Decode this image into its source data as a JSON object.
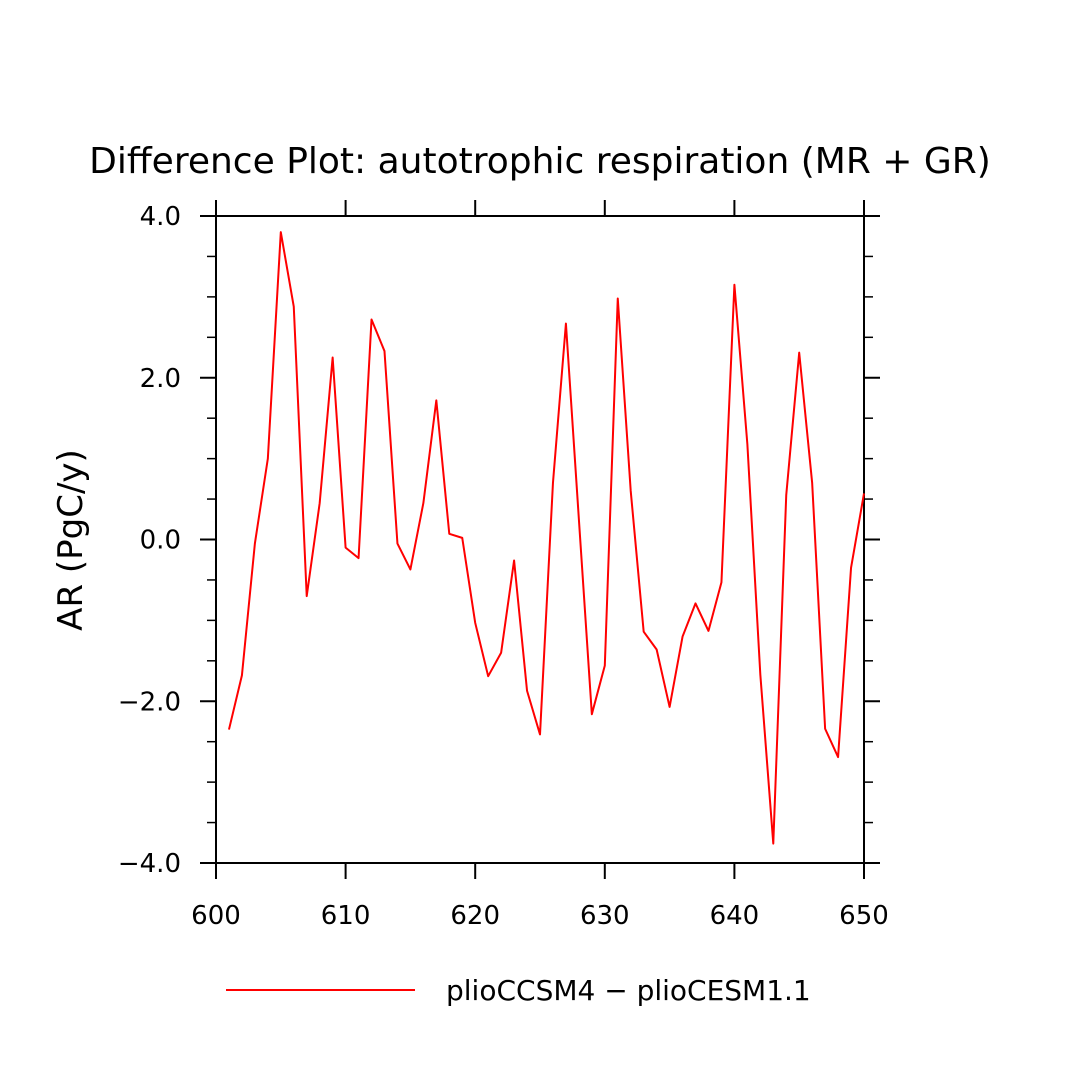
{
  "chart_data": {
    "type": "line",
    "title": "Difference Plot: autotrophic respiration (MR + GR)",
    "xlabel": "",
    "ylabel": "AR  (PgC/y)",
    "xlim": [
      600,
      650
    ],
    "ylim": [
      -4.0,
      4.0
    ],
    "x_ticks": [
      600,
      610,
      620,
      630,
      640,
      650
    ],
    "x_tick_labels": [
      "600",
      "610",
      "620",
      "630",
      "640",
      "650"
    ],
    "y_ticks": [
      -4.0,
      -2.0,
      0.0,
      2.0,
      4.0
    ],
    "y_tick_labels": [
      "−4.0",
      "−2.0",
      "0.0",
      "2.0",
      "4.0"
    ],
    "grid": false,
    "legend_position": "bottom",
    "series": [
      {
        "name": "plioCCSM4 − plioCESM1.1",
        "color": "#ff0000",
        "x": [
          601,
          602,
          603,
          604,
          605,
          606,
          607,
          608,
          609,
          610,
          611,
          612,
          613,
          614,
          615,
          616,
          617,
          618,
          619,
          620,
          621,
          622,
          623,
          624,
          625,
          626,
          627,
          628,
          629,
          630,
          631,
          632,
          633,
          634,
          635,
          636,
          637,
          638,
          639,
          640,
          641,
          642,
          643,
          644,
          645,
          646,
          647,
          648,
          649,
          650
        ],
        "y": [
          -2.35,
          -1.68,
          -0.05,
          1.0,
          3.8,
          2.88,
          -0.7,
          0.45,
          2.25,
          -0.1,
          -0.23,
          2.72,
          2.33,
          -0.05,
          -0.37,
          0.45,
          1.72,
          0.07,
          0.02,
          -1.03,
          -1.69,
          -1.4,
          -0.26,
          -1.87,
          -2.41,
          0.7,
          2.67,
          0.25,
          -2.16,
          -1.56,
          2.98,
          0.6,
          -1.14,
          -1.36,
          -2.07,
          -1.2,
          -0.79,
          -1.13,
          -0.53,
          3.15,
          1.18,
          -1.67,
          -3.76,
          0.55,
          2.31,
          0.7,
          -2.34,
          -2.69,
          -0.35,
          0.57
        ]
      }
    ]
  }
}
